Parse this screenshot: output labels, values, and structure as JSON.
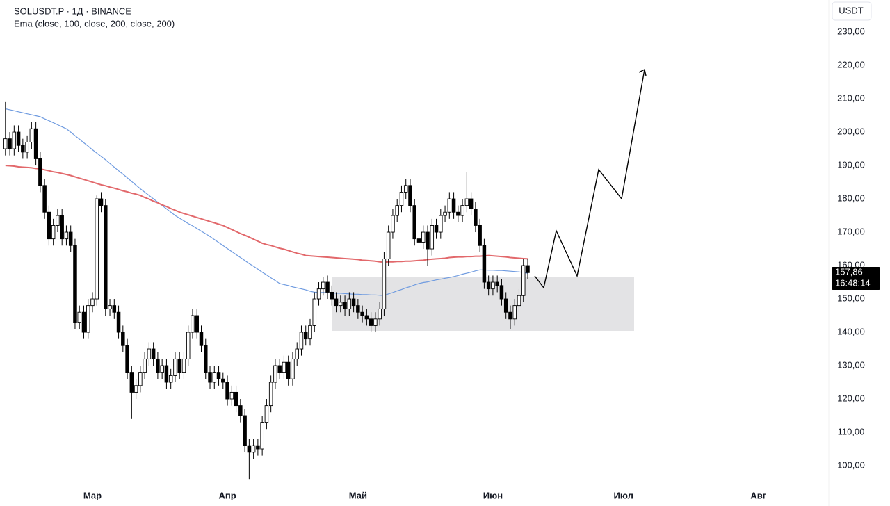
{
  "chart_data": {
    "type": "candlestick",
    "title": "SOLUSDT.P · 1Д · BINANCE",
    "indicator": "Ema (close, 100, close, 200, close, 200)",
    "currency": "USDT",
    "last_price": {
      "value": 157.86,
      "label": "157,86"
    },
    "countdown": "16:48:14",
    "up_color": "#ffffff",
    "down_color": "#000000",
    "outline_color": "#000000",
    "ema100_color": "#6f9be0",
    "ema200_color": "#e2686b",
    "ylim": [
      93.75,
      239.6
    ],
    "yticks": [
      {
        "value": 100,
        "label": "100,00"
      },
      {
        "value": 110,
        "label": "110,00"
      },
      {
        "value": 120,
        "label": "120,00"
      },
      {
        "value": 130,
        "label": "130,00"
      },
      {
        "value": 140,
        "label": "140,00"
      },
      {
        "value": 150,
        "label": "150,00"
      },
      {
        "value": 160,
        "label": "160,00"
      },
      {
        "value": 170,
        "label": "170,00"
      },
      {
        "value": 180,
        "label": "180,00"
      },
      {
        "value": 190,
        "label": "190,00"
      },
      {
        "value": 200,
        "label": "200,00"
      },
      {
        "value": 210,
        "label": "210,00"
      },
      {
        "value": 220,
        "label": "220,00"
      },
      {
        "value": 230,
        "label": "230,00"
      }
    ],
    "categories": [
      null,
      null,
      null,
      null,
      null,
      null,
      null,
      null,
      null,
      null,
      null,
      null,
      null,
      null,
      null,
      null,
      null,
      null,
      null,
      null,
      "Мар",
      null,
      null,
      null,
      null,
      null,
      null,
      null,
      null,
      null,
      null,
      null,
      null,
      null,
      null,
      null,
      null,
      null,
      null,
      null,
      null,
      null,
      null,
      null,
      null,
      null,
      null,
      null,
      null,
      null,
      null,
      "Апр",
      null,
      null,
      null,
      null,
      null,
      null,
      null,
      null,
      null,
      null,
      null,
      null,
      null,
      null,
      null,
      null,
      null,
      null,
      null,
      null,
      null,
      null,
      null,
      null,
      null,
      null,
      null,
      null,
      null,
      "Май",
      null,
      null,
      null,
      null,
      null,
      null,
      null,
      null,
      null,
      null,
      null,
      null,
      null,
      null,
      null,
      null,
      null,
      null,
      null,
      null,
      null,
      null,
      null,
      null,
      null,
      null,
      null,
      null,
      null,
      null,
      "Июн",
      null,
      null,
      null,
      null,
      null,
      null,
      null,
      null,
      null,
      null,
      null,
      null,
      null,
      null,
      null,
      null,
      null,
      null,
      null,
      null,
      null,
      null,
      null,
      null,
      null,
      null,
      null,
      null,
      null,
      "Июл",
      null,
      null,
      null,
      null,
      null,
      null,
      null,
      null,
      null,
      null,
      null,
      null,
      null,
      null,
      null,
      null,
      null,
      null,
      null,
      null,
      null,
      null,
      null,
      null,
      null,
      null,
      null,
      null,
      null,
      null,
      "Авг"
    ],
    "open": [
      195,
      198,
      195,
      200,
      196,
      194,
      197,
      201,
      192,
      184,
      176,
      168,
      172,
      175,
      168,
      170,
      166,
      143,
      146,
      140,
      148,
      150,
      180,
      178,
      147,
      148,
      146,
      140,
      136,
      128,
      122,
      124,
      128,
      132,
      135,
      132,
      128,
      130,
      125,
      127,
      132,
      128,
      132,
      140,
      145,
      140,
      136,
      128,
      125,
      128,
      126,
      125,
      120,
      122,
      118,
      115,
      106,
      104,
      106,
      105,
      113,
      118,
      125,
      130,
      128,
      131,
      126,
      132,
      135,
      140,
      138,
      142,
      150,
      153,
      155,
      152,
      150,
      148,
      149,
      147,
      150,
      148,
      146,
      145,
      144,
      142,
      144,
      147,
      162,
      170,
      175,
      178,
      182,
      184,
      178,
      168,
      167,
      170,
      165,
      172,
      170,
      175,
      176,
      180,
      176,
      175,
      178,
      180,
      177,
      172,
      166,
      155,
      153,
      155,
      154,
      150,
      146,
      144,
      148,
      151,
      160,
      null,
      null,
      null,
      null,
      null,
      null,
      null,
      null,
      null,
      null,
      null,
      null,
      null,
      null,
      null,
      null,
      null,
      null,
      null,
      null,
      null,
      null,
      null,
      null,
      null,
      null,
      null,
      null,
      null,
      null,
      null,
      null,
      null,
      null,
      null,
      null,
      null,
      null,
      null,
      null,
      null,
      null,
      null,
      null,
      null,
      null,
      null,
      null,
      null,
      null,
      null,
      null,
      null
    ],
    "high": [
      209,
      200,
      202,
      202,
      198,
      199,
      203,
      203,
      194,
      186,
      178,
      174,
      177,
      177,
      172,
      172,
      168,
      148,
      148,
      150,
      152,
      181,
      182,
      180,
      150,
      150,
      148,
      142,
      138,
      130,
      126,
      130,
      134,
      137,
      137,
      134,
      132,
      132,
      129,
      134,
      134,
      134,
      142,
      147,
      147,
      142,
      138,
      130,
      130,
      130,
      128,
      127,
      124,
      124,
      120,
      117,
      108,
      108,
      108,
      115,
      120,
      127,
      132,
      132,
      133,
      133,
      134,
      137,
      142,
      142,
      144,
      152,
      155,
      156.5,
      157,
      154,
      152,
      151,
      151,
      152,
      152,
      150,
      148,
      147,
      146,
      146,
      149,
      164,
      172,
      177,
      180,
      184,
      186,
      186,
      180,
      170,
      172,
      172,
      174,
      174,
      177,
      178,
      182,
      182,
      178,
      180,
      188,
      182,
      179,
      174,
      168,
      157,
      157,
      157,
      156,
      152,
      148,
      150,
      153,
      162,
      162,
      null,
      null,
      null,
      null,
      null,
      null,
      null,
      null,
      null,
      null,
      null,
      null,
      null,
      null,
      null,
      null,
      null,
      null,
      null,
      null,
      null,
      null,
      null,
      null,
      null,
      null,
      null,
      null,
      null,
      null,
      null,
      null,
      null,
      null,
      null,
      null,
      null,
      null,
      null,
      null,
      null,
      null,
      null,
      null,
      null,
      null,
      null,
      null,
      null,
      null,
      null,
      null,
      null
    ],
    "low": [
      193,
      193,
      193,
      194,
      192,
      192,
      195,
      190,
      182,
      174,
      166,
      166,
      170,
      166,
      166,
      164,
      141,
      141,
      138,
      138,
      146,
      148,
      176,
      145,
      145,
      144,
      138,
      134,
      126,
      114,
      120,
      122,
      126,
      130,
      130,
      126,
      126,
      123,
      123,
      125,
      126,
      126,
      130,
      138,
      138,
      134,
      126,
      123,
      123,
      124,
      123,
      118,
      118,
      116,
      113,
      104,
      96,
      102,
      103,
      103,
      111,
      116,
      123,
      126,
      126,
      124,
      124,
      130,
      133,
      136,
      136,
      140,
      148,
      151,
      150,
      148,
      146,
      146,
      145,
      145,
      146,
      144,
      143,
      142,
      140,
      140,
      142,
      145,
      160,
      168,
      173,
      176,
      180,
      176,
      166,
      165,
      165,
      160,
      163,
      168,
      168,
      173,
      174,
      174,
      173,
      173,
      176,
      175,
      170,
      164,
      153,
      151,
      151,
      152,
      148,
      144,
      141,
      142,
      146,
      149,
      156,
      null,
      null,
      null,
      null,
      null,
      null,
      null,
      null,
      null,
      null,
      null,
      null,
      null,
      null,
      null,
      null,
      null,
      null,
      null,
      null,
      null,
      null,
      null,
      null,
      null,
      null,
      null,
      null,
      null,
      null,
      null,
      null,
      null,
      null,
      null,
      null,
      null,
      null,
      null,
      null,
      null,
      null,
      null,
      null,
      null,
      null,
      null,
      null,
      null,
      null,
      null,
      null,
      null
    ],
    "close": [
      198,
      195,
      200,
      196,
      194,
      197,
      201,
      192,
      184,
      176,
      168,
      172,
      175,
      168,
      170,
      166,
      143,
      146,
      140,
      148,
      150,
      180,
      178,
      147,
      148,
      146,
      140,
      136,
      128,
      122,
      124,
      128,
      132,
      135,
      132,
      128,
      130,
      125,
      127,
      132,
      128,
      132,
      140,
      145,
      140,
      136,
      128,
      125,
      128,
      126,
      125,
      120,
      122,
      118,
      115,
      106,
      104,
      106,
      105,
      113,
      118,
      125,
      130,
      128,
      131,
      126,
      132,
      135,
      140,
      138,
      142,
      150,
      153,
      155,
      152,
      150,
      148,
      149,
      147,
      150,
      148,
      146,
      145,
      144,
      142,
      144,
      147,
      162,
      170,
      175,
      178,
      182,
      184,
      178,
      168,
      167,
      170,
      165,
      172,
      170,
      175,
      176,
      180,
      176,
      175,
      178,
      180,
      177,
      172,
      166,
      155,
      153,
      155,
      154,
      150,
      146,
      144,
      148,
      151,
      160,
      157.86,
      null,
      null,
      null,
      null,
      null,
      null,
      null,
      null,
      null,
      null,
      null,
      null,
      null,
      null,
      null,
      null,
      null,
      null,
      null,
      null,
      null,
      null,
      null,
      null,
      null,
      null,
      null,
      null,
      null,
      null,
      null,
      null,
      null,
      null,
      null,
      null,
      null,
      null,
      null,
      null,
      null,
      null,
      null,
      null,
      null,
      null,
      null,
      null,
      null,
      null,
      null,
      null,
      null
    ],
    "ema100": [
      207,
      206.7,
      206.4,
      206.1,
      205.8,
      205.5,
      205.2,
      204.9,
      204.6,
      204,
      203.4,
      202.8,
      202.2,
      201.6,
      201,
      200,
      198.9,
      197.9,
      196.8,
      195.8,
      194.7,
      193.7,
      192.7,
      191.7,
      190.6,
      189.5,
      188.4,
      187.4,
      186.3,
      185.2,
      184.1,
      183,
      182,
      181,
      180,
      179,
      178,
      177,
      176,
      175,
      174.2,
      173.4,
      172.6,
      171.9,
      171.1,
      170.3,
      169.5,
      168.7,
      167.8,
      166.9,
      166,
      165.1,
      164.2,
      163.3,
      162.4,
      161.5,
      160.6,
      159.8,
      158.9,
      158,
      157.2,
      156.3,
      155.5,
      154.6,
      154.3,
      154,
      153.6,
      153.3,
      153,
      152.7,
      152.3,
      152,
      151.9,
      151.9,
      151.8,
      151.8,
      151.7,
      151.7,
      151.6,
      151.5,
      151.4,
      151.4,
      151.3,
      151.3,
      151.2,
      151.2,
      151.1,
      151,
      151.5,
      151.9,
      152.4,
      152.8,
      153.3,
      153.7,
      154.2,
      154.6,
      154.9,
      155.1,
      155.4,
      155.7,
      155.9,
      156.2,
      156.4,
      156.7,
      157,
      157.4,
      157.7,
      158,
      158.4,
      158.7,
      158.7,
      158.6,
      158.6,
      158.5,
      158.5,
      158.4,
      158.3,
      158.2,
      158.1,
      157.9,
      157.7,
      null,
      null,
      null,
      null,
      null,
      null,
      null,
      null,
      null,
      null,
      null,
      null,
      null,
      null,
      null,
      null,
      null,
      null,
      null,
      null,
      null,
      null,
      null,
      null,
      null,
      null,
      null,
      null,
      null,
      null,
      null,
      null,
      null,
      null,
      null,
      null,
      null,
      null,
      null,
      null,
      null,
      null,
      null,
      null,
      null,
      null,
      null,
      null,
      null,
      null,
      null,
      null,
      null
    ],
    "ema200": [
      190,
      189.9,
      189.8,
      189.6,
      189.5,
      189.4,
      189.3,
      189.1,
      189,
      188.7,
      188.4,
      188.1,
      187.9,
      187.6,
      187.3,
      187,
      186.6,
      186.2,
      185.8,
      185.4,
      185,
      184.6,
      184.2,
      183.9,
      183.5,
      183.2,
      182.8,
      182.4,
      182.1,
      181.7,
      181.4,
      181,
      180.4,
      179.9,
      179.3,
      178.8,
      178.2,
      177.7,
      177.1,
      176.6,
      176,
      175.6,
      175.2,
      174.8,
      174.4,
      174,
      173.6,
      173.2,
      172.8,
      172.4,
      172,
      171.4,
      170.8,
      170.2,
      169.6,
      169.1,
      168.5,
      167.9,
      167.3,
      166.7,
      166.3,
      166,
      165.6,
      165.2,
      164.9,
      164.5,
      164.1,
      163.7,
      163.4,
      163,
      162.9,
      162.8,
      162.7,
      162.6,
      162.5,
      162.4,
      162.3,
      162.2,
      162.1,
      162,
      161.9,
      161.8,
      161.6,
      161.5,
      161.4,
      161.3,
      161.1,
      161,
      161.1,
      161.1,
      161.2,
      161.2,
      161.3,
      161.3,
      161.4,
      161.5,
      161.6,
      161.8,
      161.9,
      162,
      162.1,
      162.2,
      162.4,
      162.5,
      162.6,
      162.6,
      162.7,
      162.7,
      162.8,
      162.8,
      162.9,
      163,
      162.9,
      162.8,
      162.7,
      162.6,
      162.4,
      162.3,
      162.2,
      162.1,
      162,
      null,
      null,
      null,
      null,
      null,
      null,
      null,
      null,
      null,
      null,
      null,
      null,
      null,
      null,
      null,
      null,
      null,
      null,
      null,
      null,
      null,
      null,
      null,
      null,
      null,
      null,
      null,
      null,
      null,
      null,
      null,
      null,
      null,
      null,
      null,
      null,
      null,
      null,
      null,
      null,
      null,
      null,
      null,
      null,
      null,
      null,
      null,
      null,
      null,
      null,
      null,
      null,
      null
    ]
  }
}
